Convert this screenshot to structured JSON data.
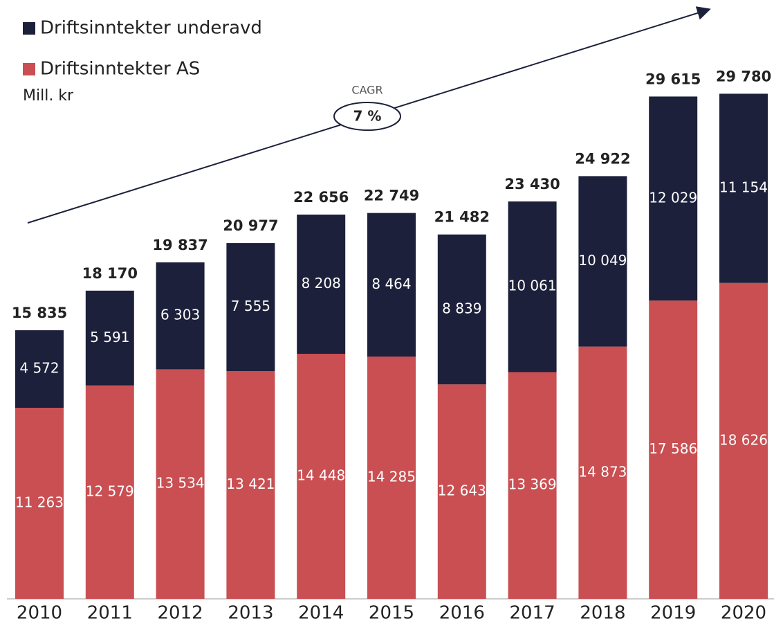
{
  "chart_data": {
    "type": "stacked_bar",
    "categories": [
      "2010",
      "2011",
      "2012",
      "2013",
      "2014",
      "2015",
      "2016",
      "2017",
      "2018",
      "2019",
      "2020"
    ],
    "series": [
      {
        "name": "Driftsinntekter AS",
        "color": "#c94f52",
        "values": [
          11263,
          12579,
          13534,
          13421,
          14448,
          14285,
          12643,
          13369,
          14873,
          17586,
          18626
        ],
        "value_labels": [
          "11 263",
          "12 579",
          "13 534",
          "13 421",
          "14 448",
          "14 285",
          "12 643",
          "13 369",
          "14 873",
          "17 586",
          "18 626"
        ]
      },
      {
        "name": "Driftsinntekter underavd",
        "color": "#1c203a",
        "values": [
          4572,
          5591,
          6303,
          7555,
          8208,
          8464,
          8839,
          10061,
          10049,
          12029,
          11154
        ],
        "value_labels": [
          "4 572",
          "5 591",
          "6 303",
          "7 555",
          "8 208",
          "8 464",
          "8 839",
          "10 061",
          "10 049",
          "12 029",
          "11 154"
        ]
      }
    ],
    "totals": {
      "values": [
        15835,
        18170,
        19837,
        20977,
        22656,
        22749,
        21482,
        23430,
        24922,
        29615,
        29780
      ],
      "value_labels": [
        "15 835",
        "18 170",
        "19 837",
        "20 977",
        "22 656",
        "22 749",
        "21 482",
        "23 430",
        "24 922",
        "29 615",
        "29 780"
      ]
    },
    "unit_label": "Mill. kr",
    "annotation": {
      "label": "CAGR",
      "value_label": "7 %"
    },
    "ylim": [
      0,
      30000
    ]
  }
}
